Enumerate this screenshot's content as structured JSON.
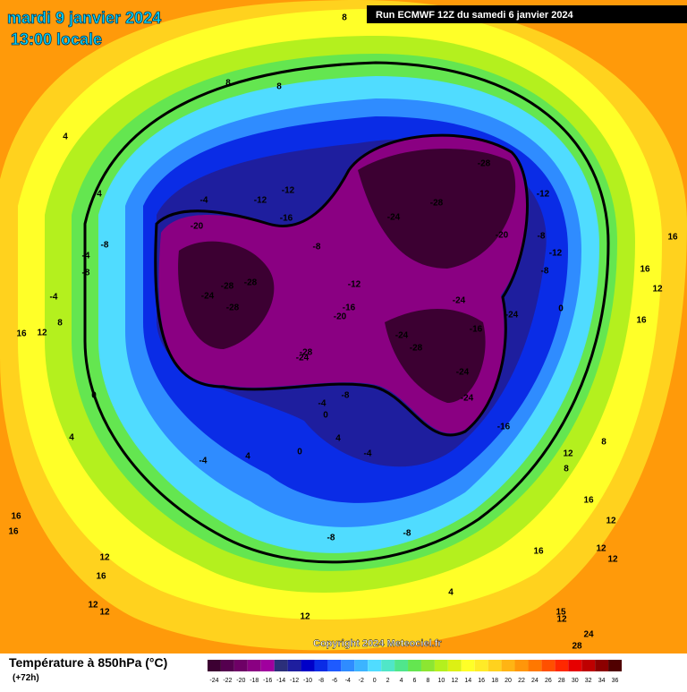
{
  "header": {
    "date": "mardi 9 janvier 2024",
    "time": "13:00 locale",
    "run": "Run ECMWF 12Z du samedi 6 janvier 2024"
  },
  "copyright": "Copyright 2024 Meteociel.fr",
  "legend": {
    "title": "Température à 850hPa (°C)",
    "subtitle": "(+72h)",
    "values": [
      -24,
      -22,
      -20,
      -18,
      -16,
      -14,
      -12,
      -10,
      -8,
      -6,
      -4,
      -2,
      0,
      2,
      4,
      6,
      8,
      10,
      12,
      14,
      16,
      18,
      20,
      22,
      24,
      26,
      28,
      30,
      32,
      34,
      36
    ],
    "colors": [
      "#3c0032",
      "#55004f",
      "#6e0066",
      "#8a0082",
      "#a0009e",
      "#2b2f7a",
      "#1e1e9e",
      "#0000c8",
      "#0a2ce6",
      "#1e5aff",
      "#2f8cff",
      "#3cb4ff",
      "#50dcff",
      "#50e6c8",
      "#50e68c",
      "#64e650",
      "#8ce632",
      "#b4f01e",
      "#dcf014",
      "#ffff28",
      "#ffeb28",
      "#ffd21e",
      "#ffb414",
      "#ff960a",
      "#ff7800",
      "#ff5000",
      "#ff2800",
      "#e60000",
      "#be0000",
      "#8c0000",
      "#500000"
    ]
  },
  "map": {
    "contour_labels": [
      8,
      8,
      8,
      4,
      4,
      -4,
      -12,
      -12,
      -16,
      -20,
      -8,
      -4,
      -8,
      -4,
      -24,
      -28,
      -28,
      -28,
      -8,
      -12,
      -20,
      -16,
      -28,
      -28,
      -24,
      -12,
      -20,
      -8,
      -12,
      -8,
      -24,
      -24,
      -16,
      -24,
      -28,
      -28,
      -24,
      -24,
      -24,
      -16,
      -8,
      -4,
      0,
      0,
      16,
      12,
      8,
      4,
      -4,
      4,
      0,
      4,
      -4,
      0,
      16,
      16,
      12,
      16,
      12,
      8,
      8,
      16,
      12,
      16,
      12,
      12,
      -8,
      -8,
      4,
      16,
      16,
      12,
      16,
      12,
      12,
      12,
      15,
      12,
      24,
      28
    ]
  }
}
